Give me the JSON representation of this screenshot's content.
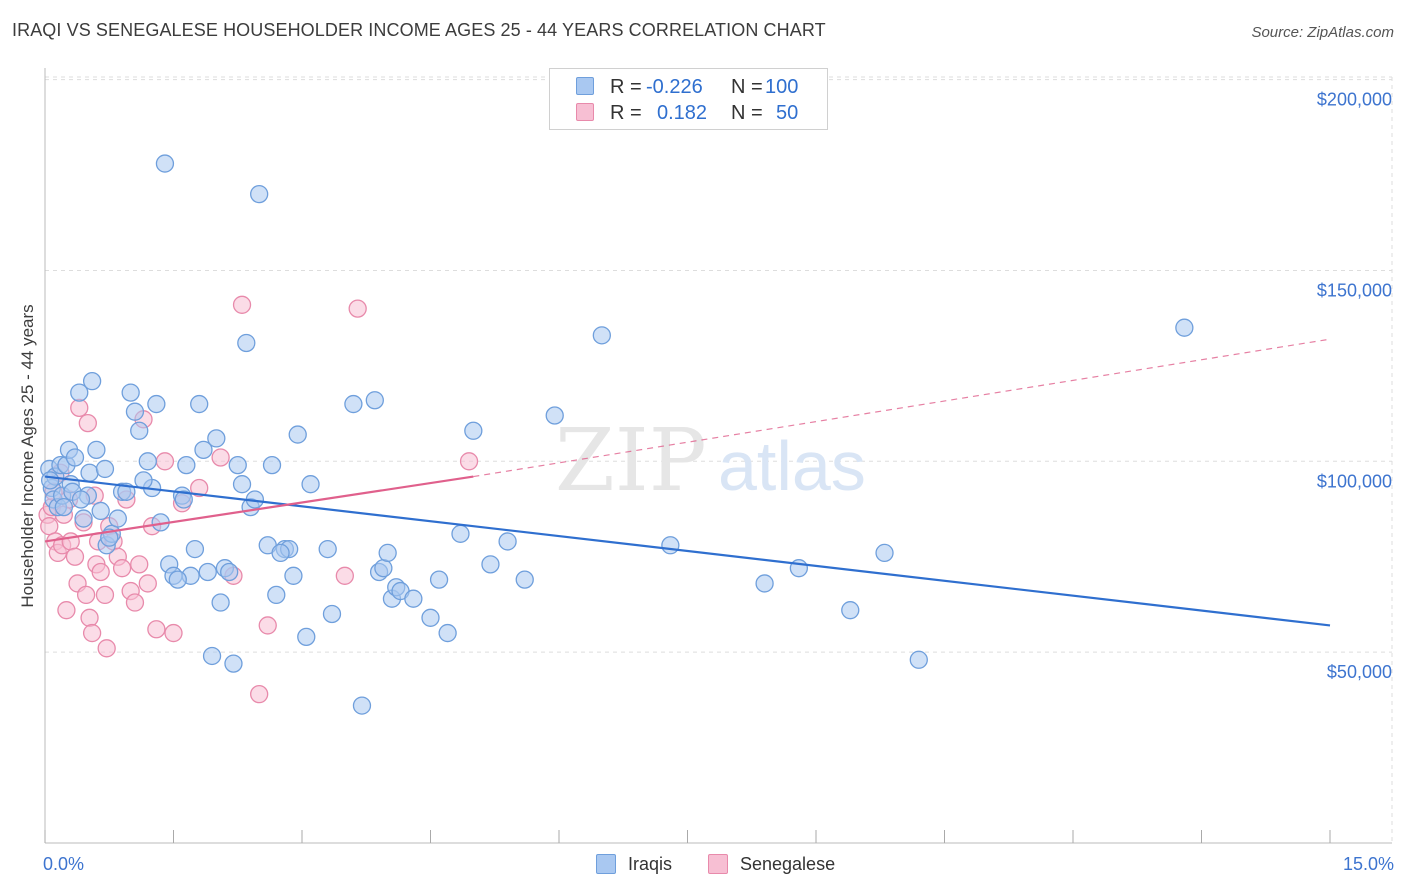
{
  "title": "IRAQI VS SENEGALESE HOUSEHOLDER INCOME AGES 25 - 44 YEARS CORRELATION CHART",
  "source": "Source: ZipAtlas.com",
  "watermark": {
    "zip": "ZIP",
    "atlas": "atlas"
  },
  "colors": {
    "blue_fill": "#a9c8f1",
    "blue_stroke": "#6f9fdc",
    "blue_line": "#2f6fcf",
    "pink_fill": "#f7bfd3",
    "pink_stroke": "#e88aab",
    "pink_line": "#e0608c",
    "axis_label": "#3d74cf",
    "grid": "#dddddd"
  },
  "stats": {
    "iraqis": {
      "r_label": "R =",
      "r_value": "-0.226",
      "n_label": "N =",
      "n_value": "100"
    },
    "senegalese": {
      "r_label": "R =",
      "r_value": "0.182",
      "n_label": "N =",
      "n_value": "50"
    }
  },
  "legend": {
    "iraqis": "Iraqis",
    "senegalese": "Senegalese"
  },
  "chart_data": {
    "type": "scatter",
    "title": "IRAQI VS SENEGALESE HOUSEHOLDER INCOME AGES 25 - 44 YEARS CORRELATION CHART",
    "xlabel": "",
    "ylabel": "Householder Income Ages 25 - 44 years",
    "xlim": [
      0,
      15
    ],
    "ylim": [
      0,
      210000
    ],
    "x_tick_labels": [
      "0.0%",
      "15.0%"
    ],
    "y_ticks": [
      50000,
      100000,
      150000,
      200000
    ],
    "y_tick_labels": [
      "$50,000",
      "$100,000",
      "$150,000",
      "$200,000"
    ],
    "grid": true,
    "series": [
      {
        "name": "Iraqis",
        "trend": {
          "x": [
            0,
            15
          ],
          "y": [
            96000,
            57000
          ],
          "style": "solid"
        },
        "points": [
          [
            0.05,
            98000
          ],
          [
            0.08,
            93000
          ],
          [
            0.1,
            90000
          ],
          [
            0.12,
            96000
          ],
          [
            0.15,
            88000
          ],
          [
            0.18,
            99000
          ],
          [
            0.2,
            91000
          ],
          [
            0.22,
            88000
          ],
          [
            0.25,
            99000
          ],
          [
            0.28,
            103000
          ],
          [
            0.3,
            94000
          ],
          [
            0.35,
            101000
          ],
          [
            0.4,
            118000
          ],
          [
            0.45,
            85000
          ],
          [
            0.5,
            91000
          ],
          [
            0.52,
            97000
          ],
          [
            0.55,
            121000
          ],
          [
            0.6,
            103000
          ],
          [
            0.65,
            87000
          ],
          [
            0.7,
            98000
          ],
          [
            0.72,
            78000
          ],
          [
            0.78,
            81000
          ],
          [
            0.85,
            85000
          ],
          [
            0.9,
            92000
          ],
          [
            0.95,
            92000
          ],
          [
            1.0,
            118000
          ],
          [
            1.05,
            113000
          ],
          [
            1.1,
            108000
          ],
          [
            1.2,
            100000
          ],
          [
            1.25,
            93000
          ],
          [
            1.3,
            115000
          ],
          [
            1.35,
            84000
          ],
          [
            1.4,
            178000
          ],
          [
            1.45,
            73000
          ],
          [
            1.5,
            70000
          ],
          [
            1.6,
            91000
          ],
          [
            1.62,
            90000
          ],
          [
            1.65,
            99000
          ],
          [
            1.7,
            70000
          ],
          [
            1.75,
            77000
          ],
          [
            1.8,
            115000
          ],
          [
            1.85,
            103000
          ],
          [
            1.9,
            71000
          ],
          [
            1.95,
            49000
          ],
          [
            2.0,
            106000
          ],
          [
            2.05,
            63000
          ],
          [
            2.1,
            72000
          ],
          [
            2.15,
            71000
          ],
          [
            2.2,
            47000
          ],
          [
            2.25,
            99000
          ],
          [
            2.3,
            94000
          ],
          [
            2.35,
            131000
          ],
          [
            2.4,
            88000
          ],
          [
            2.45,
            90000
          ],
          [
            2.5,
            170000
          ],
          [
            2.6,
            78000
          ],
          [
            2.65,
            99000
          ],
          [
            2.7,
            65000
          ],
          [
            2.8,
            77000
          ],
          [
            2.85,
            77000
          ],
          [
            2.9,
            70000
          ],
          [
            2.95,
            107000
          ],
          [
            3.05,
            54000
          ],
          [
            3.1,
            94000
          ],
          [
            3.3,
            77000
          ],
          [
            3.35,
            60000
          ],
          [
            3.6,
            115000
          ],
          [
            3.7,
            36000
          ],
          [
            3.85,
            116000
          ],
          [
            3.9,
            71000
          ],
          [
            3.95,
            72000
          ],
          [
            4.0,
            76000
          ],
          [
            4.05,
            64000
          ],
          [
            4.1,
            67000
          ],
          [
            4.15,
            66000
          ],
          [
            4.3,
            64000
          ],
          [
            4.5,
            59000
          ],
          [
            4.7,
            55000
          ],
          [
            4.85,
            81000
          ],
          [
            5.0,
            108000
          ],
          [
            5.2,
            73000
          ],
          [
            5.4,
            79000
          ],
          [
            5.6,
            69000
          ],
          [
            5.95,
            112000
          ],
          [
            6.5,
            133000
          ],
          [
            7.3,
            78000
          ],
          [
            8.4,
            68000
          ],
          [
            8.8,
            72000
          ],
          [
            9.4,
            61000
          ],
          [
            9.8,
            76000
          ],
          [
            10.2,
            48000
          ],
          [
            13.3,
            135000
          ],
          [
            0.06,
            95000
          ],
          [
            0.32,
            92000
          ],
          [
            0.42,
            90000
          ],
          [
            0.75,
            80000
          ],
          [
            1.15,
            95000
          ],
          [
            1.55,
            69000
          ],
          [
            2.75,
            76000
          ],
          [
            4.6,
            69000
          ]
        ]
      },
      {
        "name": "Senegalese",
        "trend": {
          "x": [
            0,
            5
          ],
          "y": [
            79000,
            96000
          ],
          "style": "solid"
        },
        "trend_extension": {
          "x": [
            5,
            15
          ],
          "y": [
            96000,
            132000
          ],
          "style": "dashed"
        },
        "points": [
          [
            0.03,
            86000
          ],
          [
            0.05,
            83000
          ],
          [
            0.08,
            88000
          ],
          [
            0.1,
            92000
          ],
          [
            0.12,
            79000
          ],
          [
            0.15,
            76000
          ],
          [
            0.18,
            97000
          ],
          [
            0.2,
            78000
          ],
          [
            0.22,
            86000
          ],
          [
            0.25,
            61000
          ],
          [
            0.28,
            90000
          ],
          [
            0.3,
            79000
          ],
          [
            0.35,
            75000
          ],
          [
            0.38,
            68000
          ],
          [
            0.4,
            114000
          ],
          [
            0.45,
            84000
          ],
          [
            0.48,
            65000
          ],
          [
            0.5,
            110000
          ],
          [
            0.52,
            59000
          ],
          [
            0.55,
            55000
          ],
          [
            0.6,
            73000
          ],
          [
            0.62,
            79000
          ],
          [
            0.65,
            71000
          ],
          [
            0.7,
            65000
          ],
          [
            0.72,
            51000
          ],
          [
            0.75,
            83000
          ],
          [
            0.8,
            79000
          ],
          [
            0.85,
            75000
          ],
          [
            0.9,
            72000
          ],
          [
            0.95,
            90000
          ],
          [
            1.0,
            66000
          ],
          [
            1.05,
            63000
          ],
          [
            1.1,
            73000
          ],
          [
            1.15,
            111000
          ],
          [
            1.2,
            68000
          ],
          [
            1.25,
            83000
          ],
          [
            1.3,
            56000
          ],
          [
            1.4,
            100000
          ],
          [
            1.5,
            55000
          ],
          [
            1.6,
            89000
          ],
          [
            1.8,
            93000
          ],
          [
            2.05,
            101000
          ],
          [
            2.2,
            70000
          ],
          [
            2.3,
            141000
          ],
          [
            2.5,
            39000
          ],
          [
            2.6,
            57000
          ],
          [
            3.5,
            70000
          ],
          [
            3.65,
            140000
          ],
          [
            4.95,
            100000
          ],
          [
            0.58,
            91000
          ]
        ]
      }
    ]
  }
}
